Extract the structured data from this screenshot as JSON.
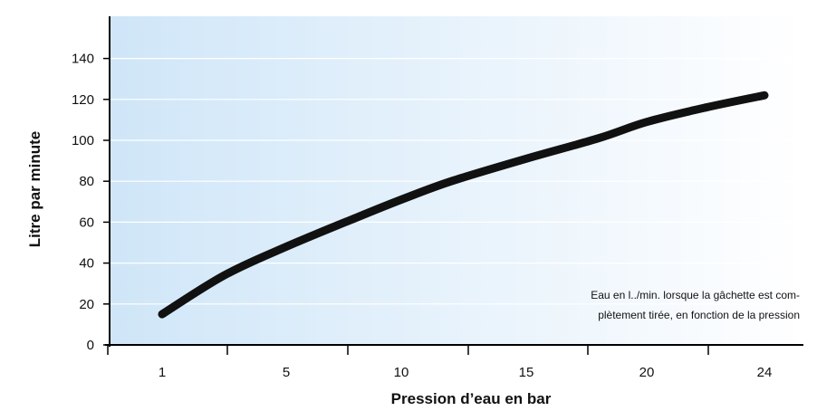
{
  "chart_data": {
    "type": "line",
    "title": "",
    "xlabel": "Pression d’eau en bar",
    "ylabel": "Litre par minute",
    "x_tick_labels": [
      "1",
      "5",
      "10",
      "15",
      "20",
      "24"
    ],
    "y_ticks": [
      0,
      20,
      40,
      60,
      80,
      100,
      120,
      140
    ],
    "y_tick_labels": [
      "0",
      "20",
      "40",
      "60",
      "80",
      "100",
      "120",
      "140"
    ],
    "ylim": [
      0,
      160
    ],
    "grid": "horizontal",
    "annotation": {
      "line1": "Eau en l../min. lorsque la gâchette est com-",
      "line2": "plètement tirée, en fonction de la pression"
    },
    "series": [
      {
        "x": [
          1,
          3,
          5,
          8,
          10,
          12,
          15,
          18,
          20,
          22,
          24
        ],
        "values": [
          15,
          34,
          48,
          62,
          71,
          80,
          91,
          101,
          109,
          116,
          122
        ]
      }
    ],
    "colors": {
      "line": "#111111",
      "background_left": "#cfe6f8",
      "background_right": "#ffffff",
      "grid": "#ffffff"
    }
  }
}
